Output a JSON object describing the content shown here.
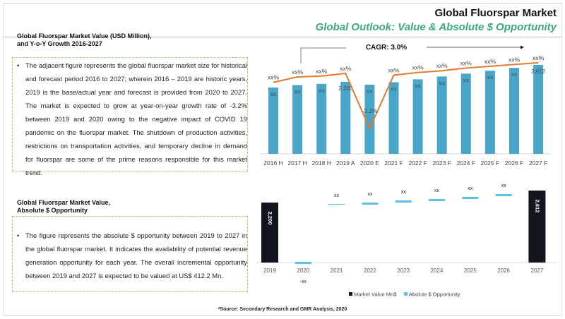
{
  "header": {
    "title": "Global Fluorspar Market",
    "subtitle": "Global Outlook: Value & Absolute $ Opportunity",
    "accent_color": "#3aa882"
  },
  "section1": {
    "title_line1": "Global Fluorspar Market Value (USD Million),",
    "title_line2": "and Y-o-Y Growth 2016-2027",
    "bullet": "•",
    "text": "The adjacent figure represents the global fluorspar market size for historical and forecast period 2016 to 2027; wherein 2016 – 2019 are historic years, 2019 is the base/actual year and forecast is provided from 2020 to 2027. The market is expected to grow at year-on-year growth rate of -3.2% between 2019 and 2020 owing to the negative impact of COVID 19 pandemic on the fluorspar market. The shutdown of production activities, restrictions on transportation activities, and temporary decline in demand for fluorspar are some of the prime reasons responsible for this market trend."
  },
  "section2": {
    "title_line1": "Global Fluorspar Market Value,",
    "title_line2": "Absolute $ Opportunity",
    "bullet": "•",
    "text": "The figure represents the absolute $ opportunity between 2019 to 2027 in the global fluorspar market. It indicates the availability of potential revenue generation opportunity for each year. The overall incremental opportunity between 2019 and 2027 is expected to be valued at US$ 412.2 Mn."
  },
  "footer": {
    "source": "*Source: Secondary Research and GMR Analysis, 2020"
  },
  "chart_data": [
    {
      "type": "bar",
      "title": "Global Fluorspar Market Value (USD Million), and Y-o-Y Growth 2016-2027",
      "annotation": "CAGR: 3.0%",
      "categories": [
        "2016 H",
        "2017 H",
        "2018 H",
        "2019 A",
        "2020 E",
        "2021 F",
        "2022 F",
        "2023 F",
        "2024 F",
        "2025 F",
        "2026 F",
        "2027 F"
      ],
      "series": [
        {
          "name": "Market Value (USD Million)",
          "kind": "bar",
          "color": "#4aa6c8",
          "values": [
            2060,
            2120,
            2150,
            2200,
            2130,
            2190,
            2260,
            2330,
            2400,
            2470,
            2540,
            2612
          ],
          "labels": [
            "xx",
            "xx",
            "xx",
            "2,200",
            "xx",
            "xx",
            "xx",
            "xx",
            "xx",
            "xx",
            "xx",
            "2,612"
          ]
        },
        {
          "name": "Y-o-Y Growth (%)",
          "kind": "line",
          "color": "#e27a2e",
          "values": [
            2.0,
            2.6,
            2.7,
            3.0,
            -3.2,
            2.8,
            3.1,
            3.3,
            3.6,
            3.8,
            4.0,
            4.2
          ],
          "labels": [
            "xx%",
            "xx%",
            "xx%",
            "xx%",
            "-3.2%",
            "xx%",
            "xx%",
            "xx%",
            "xx%",
            "xx%",
            "xx%",
            "xx%"
          ]
        }
      ],
      "xlabel": "",
      "ylabel": "",
      "ylim": [
        0,
        2700
      ],
      "grid": false,
      "legend": "none"
    },
    {
      "type": "bar",
      "title": "Global Fluorspar Market Value, Absolute $ Opportunity",
      "categories": [
        "2019",
        "2020",
        "2021",
        "2022",
        "2023",
        "2024",
        "2025",
        "2026",
        "2027"
      ],
      "series": [
        {
          "name": "Market Value Mn$",
          "color": "#12141f",
          "values": [
            2200,
            null,
            null,
            null,
            null,
            null,
            null,
            null,
            2612
          ],
          "labels": [
            "2,200",
            "",
            "",
            "",
            "",
            "",
            "",
            "",
            "2,612"
          ]
        },
        {
          "name": "Abolute $ Opportunity",
          "color": "#5bc0e8",
          "values": [
            null,
            -70,
            0,
            70,
            70,
            70,
            70,
            70,
            null
          ],
          "bases": [
            null,
            2200,
            2130,
            2190,
            2260,
            2330,
            2400,
            2470,
            null
          ],
          "labels": [
            "",
            "-xx",
            "xx",
            "xx",
            "xx",
            "xx",
            "xx",
            "xx",
            ""
          ]
        }
      ],
      "ylim": [
        0,
        2700
      ],
      "grid": false,
      "legend": "bottom-right"
    }
  ]
}
